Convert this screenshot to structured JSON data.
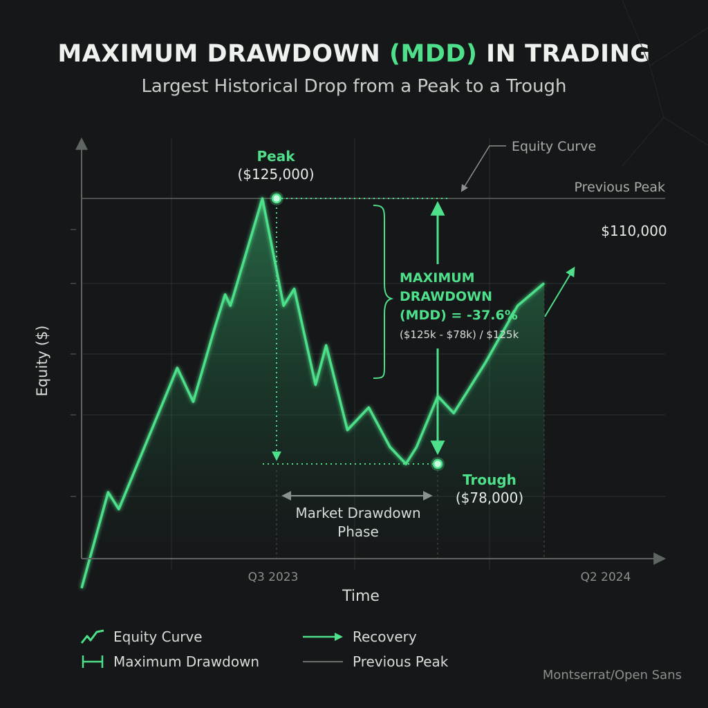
{
  "header": {
    "title_pre": "MAXIMUM DRAWDOWN ",
    "title_highlight": "(MDD)",
    "title_post": " IN TRADING",
    "subtitle": "Largest Historical Drop from a Peak to a Trough"
  },
  "colors": {
    "background": "#161719",
    "accent": "#4ee08a",
    "grid": "#2c302e",
    "axis": "#5f6662",
    "text": "#e8ece9"
  },
  "chart_data": {
    "type": "area",
    "xlabel": "Time",
    "ylabel": "Equity ($)",
    "x_ticks": [
      "Q3 2023",
      "Q2 2024"
    ],
    "series": [
      {
        "name": "Equity Curve",
        "points": [
          [
            0.0,
            56000
          ],
          [
            0.05,
            73000
          ],
          [
            0.07,
            70000
          ],
          [
            0.18,
            95000
          ],
          [
            0.21,
            89000
          ],
          [
            0.25,
            102000
          ],
          [
            0.27,
            108000
          ],
          [
            0.28,
            106000
          ],
          [
            0.34,
            125000
          ],
          [
            0.38,
            106000
          ],
          [
            0.4,
            109000
          ],
          [
            0.44,
            92000
          ],
          [
            0.46,
            99000
          ],
          [
            0.5,
            84000
          ],
          [
            0.54,
            88000
          ],
          [
            0.58,
            81000
          ],
          [
            0.61,
            78000
          ],
          [
            0.63,
            81000
          ],
          [
            0.67,
            90000
          ],
          [
            0.7,
            87000
          ],
          [
            0.76,
            96000
          ],
          [
            0.82,
            106000
          ],
          [
            0.87,
            110000
          ]
        ]
      }
    ],
    "peak": {
      "label": "Peak",
      "value_label": "($125,000)",
      "value": 125000
    },
    "trough": {
      "label": "Trough",
      "value_label": "($78,000)",
      "value": 78000
    },
    "end_value_label": "$110,000",
    "previous_peak_label": "Previous Peak",
    "equity_curve_callout": "Equity Curve",
    "mdd": {
      "line1": "MAXIMUM",
      "line2": "DRAWDOWN",
      "line3": "(MDD) = -37.6%",
      "formula": "($125k - $78k) / $125k",
      "value_percent": -37.6
    },
    "phase_label_1": "Market Drawdown",
    "phase_label_2": "Phase"
  },
  "legend": {
    "equity_curve": "Equity Curve",
    "maximum_drawdown": "Maximum Drawdown",
    "recovery": "Recovery",
    "previous_peak": "Previous Peak"
  },
  "footer": {
    "credit": "Montserrat/Open Sans"
  }
}
